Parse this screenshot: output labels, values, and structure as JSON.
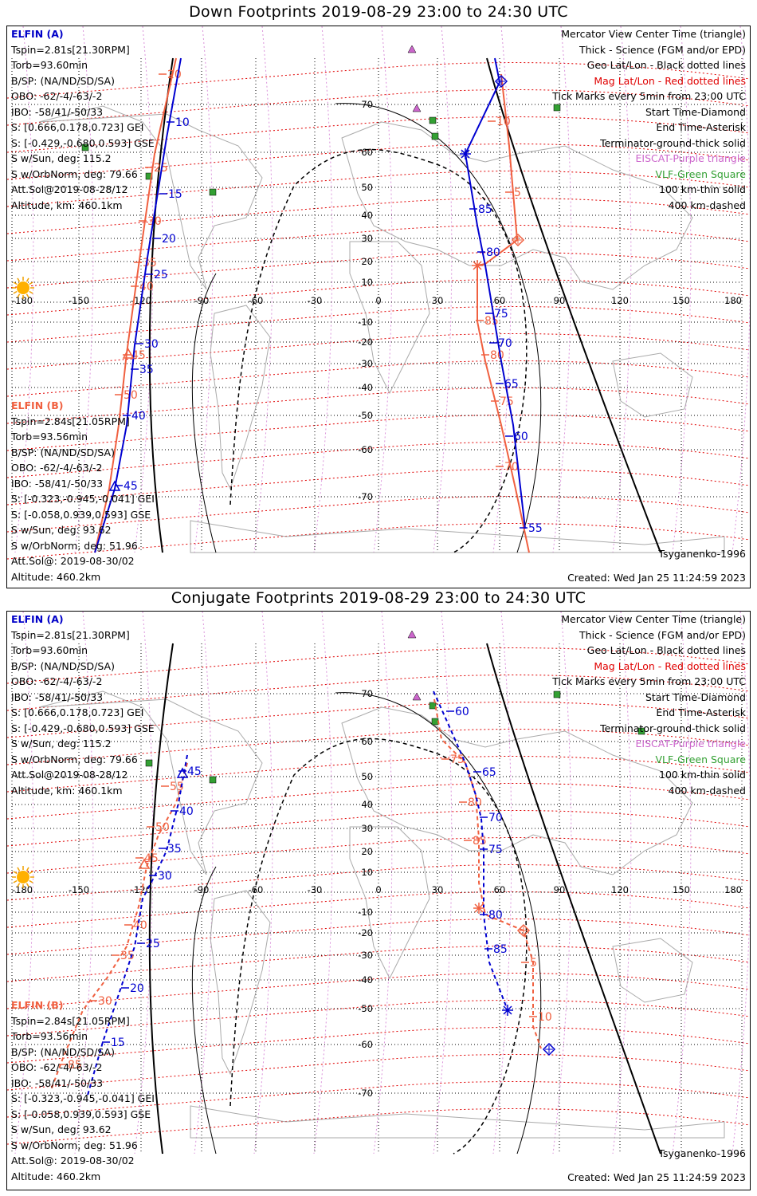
{
  "panels": [
    {
      "title": "Down Footprints 2019-08-29 23:00 to 24:30 UTC",
      "elfin_a": [
        "ELFIN (A)",
        "Tspin=2.81s[21.30RPM]",
        "Torb=93.60min",
        "B/SP: (NA/ND/SD/SA)",
        "OBO: -62/-4/-63/-2",
        "IBO: -58/41/-50/33",
        "S: [0.666,0.178,0.723] GEI",
        "S: [-0.429,-0.680,0.593] GSE",
        "S w/Sun, deg: 115.2",
        "S w/OrbNorm, deg: 79.66",
        "Att.Sol@2019-08-28/12",
        "Altitude, km: 460.1km"
      ],
      "elfin_b": [
        "ELFIN (B)",
        "Tspin=2.84s[21.05RPM]",
        "Torb=93.56min",
        "B/SP: (NA/ND/SD/SA)",
        "OBO: -62/-4/-63/-2",
        "IBO: -58/41/-50/33",
        "S: [-0.323,-0.945,-0.041] GEI",
        "S: [-0.058,0.939,0.593] GSE",
        "S w/Sun, deg: 93.62",
        "S w/OrbNorm, deg: 51.96",
        "Att.Sol@: 2019-08-30/02",
        "Altitude: 460.2km"
      ],
      "legend": [
        "Mercator View Center Time (triangle)",
        "Thick - Science (FGM and/or EPD)",
        "Geo Lat/Lon - Black dotted lines",
        "Mag Lat/Lon - Red dotted lines",
        "Tick Marks every 5min from 23:00 UTC",
        "Start Time-Diamond",
        "End Time-Asterisk",
        "Terminator-ground-thick solid",
        "EISCAT-Purple triangle",
        "VLF-Green Square",
        "100 km-thin solid",
        "400 km-dashed"
      ],
      "model": "Tsyganenko-1996",
      "created": "Created: Wed Jan 25 11:24:59 2023",
      "lon_ticks": [
        "-180",
        "-150",
        "-120",
        "-90",
        "-60",
        "-30",
        "0",
        "30",
        "60",
        "90",
        "120",
        "150",
        "180"
      ],
      "lat_ticks": [
        "70",
        "60",
        "50",
        "40",
        "30",
        "20",
        "10",
        "-10",
        "-20",
        "-30",
        "-40",
        "-50",
        "-60",
        "-70"
      ],
      "track_labels": {
        "a_blue": [
          "10",
          "15",
          "20",
          "25",
          "30",
          "35",
          "40",
          "45"
        ],
        "b_orange": [
          "20",
          "25",
          "30",
          "35",
          "40",
          "45",
          "50"
        ],
        "b_blue": [
          "85",
          "80",
          "75",
          "70",
          "65",
          "60",
          "55"
        ],
        "a_orange": [
          "10",
          "5",
          "85",
          "80",
          "75",
          "70"
        ]
      }
    },
    {
      "title": "Conjugate Footprints 2019-08-29 23:00 to 24:30 UTC",
      "elfin_a": [
        "ELFIN (A)",
        "Tspin=2.81s[21.30RPM]",
        "Torb=93.60min",
        "B/SP: (NA/ND/SD/SA)",
        "OBO: -62/-4/-63/-2",
        "IBO: -58/41/-50/33",
        "S: [0.666,0.178,0.723] GEI",
        "S: [-0.429,-0.680,0.593] GSE",
        "S w/Sun, deg: 115.2",
        "S w/OrbNorm, deg: 79.66",
        "Att.Sol@2019-08-28/12",
        "Altitude, km: 460.1km"
      ],
      "elfin_b": [
        "ELFIN (B)",
        "Tspin=2.84s[21.05RPM]",
        "Torb=93.56min",
        "B/SP: (NA/ND/SD/SA)",
        "OBO: -62/-4/-63/-2",
        "IBO: -58/41/-50/33",
        "S: [-0.323,-0.945,-0.041] GEI",
        "S: [-0.058,0.939,0.593] GSE",
        "S w/Sun, deg: 93.62",
        "S w/OrbNorm, deg: 51.96",
        "Att.Sol@: 2019-08-30/02",
        "Altitude: 460.2km"
      ],
      "legend": [
        "Mercator View Center Time (triangle)",
        "Thick - Science (FGM and/or EPD)",
        "Geo Lat/Lon - Black dotted lines",
        "Mag Lat/Lon - Red dotted lines",
        "Tick Marks every 5min from 23:00 UTC",
        "Start Time-Diamond",
        "End Time-Asterisk",
        "Terminator-ground-thick solid",
        "EISCAT-Purple triangle",
        "VLF-Green Square",
        "100 km-thin solid",
        "400 km-dashed"
      ],
      "model": "Tsyganenko-1996",
      "created": "Created: Wed Jan 25 11:24:59 2023",
      "lon_ticks": [
        "-180",
        "-150",
        "-120",
        "-90",
        "-60",
        "-30",
        "0",
        "30",
        "60",
        "90",
        "120",
        "150",
        "180"
      ],
      "lat_ticks": [
        "70",
        "60",
        "50",
        "40",
        "30",
        "20",
        "10",
        "-10",
        "-20",
        "-30",
        "-40",
        "-50",
        "-60",
        "-70"
      ],
      "track_labels": {
        "a_blue": [
          "45",
          "40",
          "35",
          "30",
          "25",
          "20",
          "15"
        ],
        "b_orange": [
          "55",
          "50",
          "45",
          "40",
          "35",
          "30",
          "85"
        ],
        "b_blue": [
          "60",
          "65",
          "70",
          "75",
          "80",
          "85"
        ],
        "a_orange": [
          "75",
          "80",
          "85",
          "5",
          "10"
        ]
      }
    }
  ],
  "colors": {
    "elfin_a": "#0000d0",
    "elfin_b": "#f06040",
    "mag_grid": "#e00000",
    "geo_grid": "#000000",
    "eiscat": "#cc66cc",
    "vlf": "#33a033"
  }
}
